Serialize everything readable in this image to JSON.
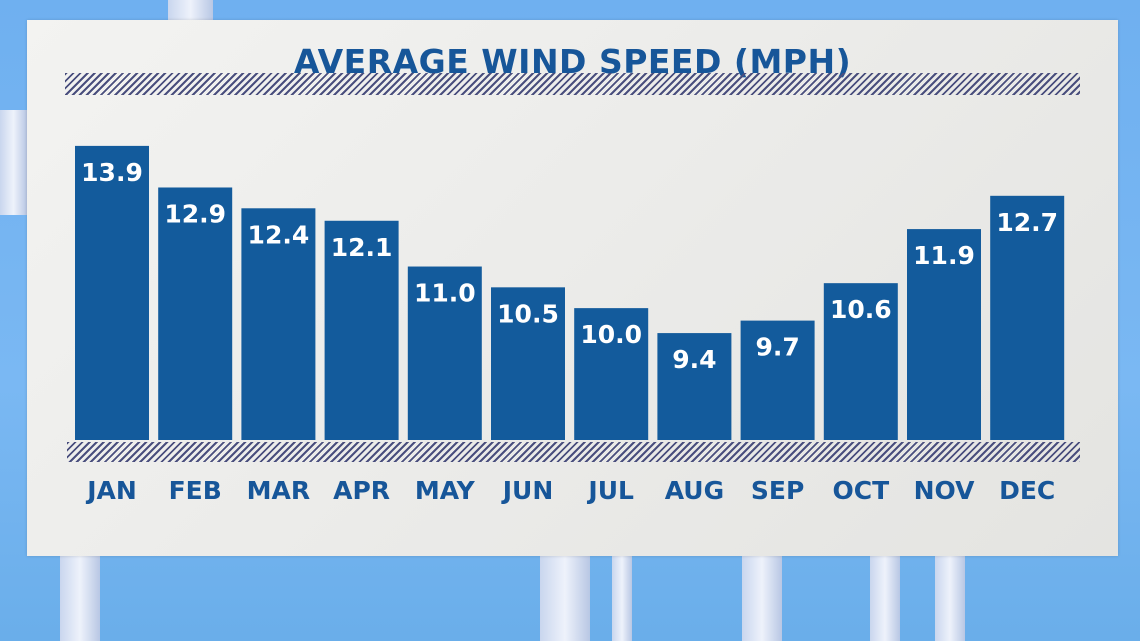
{
  "chart_data": {
    "type": "bar",
    "title": "AVERAGE WIND SPEED (MPH)",
    "categories": [
      "JAN",
      "FEB",
      "MAR",
      "APR",
      "MAY",
      "JUN",
      "JUL",
      "AUG",
      "SEP",
      "OCT",
      "NOV",
      "DEC"
    ],
    "values": [
      13.9,
      12.9,
      12.4,
      12.1,
      11.0,
      10.5,
      10.0,
      9.4,
      9.7,
      10.6,
      11.9,
      12.7
    ],
    "value_labels": [
      "13.9",
      "12.9",
      "12.4",
      "12.1",
      "11.0",
      "10.5",
      "10.0",
      "9.4",
      "9.7",
      "10.6",
      "11.9",
      "12.7"
    ],
    "xlabel": "",
    "ylabel": "",
    "ylim": [
      6.8,
      14.5
    ],
    "grid": false,
    "legend": "none",
    "colors": {
      "bar": "#135b9c",
      "text": "#175699",
      "label": "#ffffff"
    }
  }
}
